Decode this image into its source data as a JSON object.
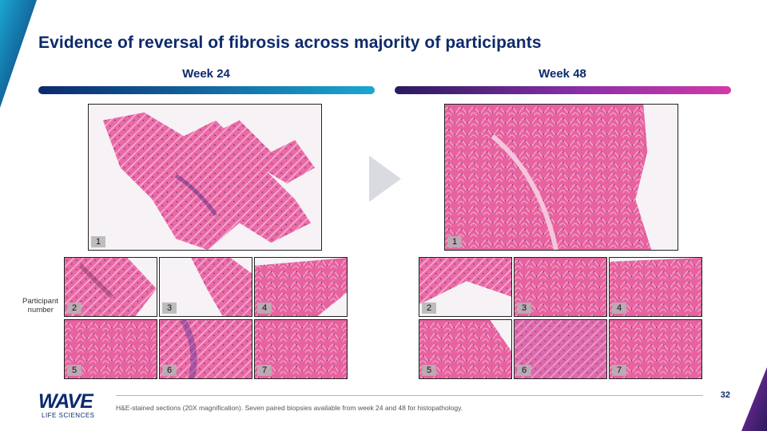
{
  "slide": {
    "title": "Evidence of reversal of fibrosis across majority of participants",
    "page_number": "32",
    "footnote": "H&E-stained sections (20X magnification). Seven paired biopsies available from week 24 and 48 for histopathology.",
    "participant_label_line1": "Participant",
    "participant_label_line2": "number"
  },
  "columns": {
    "left": {
      "heading": "Week 24"
    },
    "right": {
      "heading": "Week 48"
    }
  },
  "images": {
    "w24": {
      "p1": "1",
      "p2": "2",
      "p3": "3",
      "p4": "4",
      "p5": "5",
      "p6": "6",
      "p7": "7"
    },
    "w48": {
      "p1": "1",
      "p2": "2",
      "p3": "3",
      "p4": "4",
      "p5": "5",
      "p6": "6",
      "p7": "7"
    }
  },
  "logo": {
    "word": "WAVE",
    "sub": "LIFE SCIENCES"
  },
  "colors": {
    "navy": "#0d2a6b",
    "cyan": "#1aa7d0",
    "magenta": "#d23aa8",
    "tissue_pink": "#e85aa0"
  }
}
